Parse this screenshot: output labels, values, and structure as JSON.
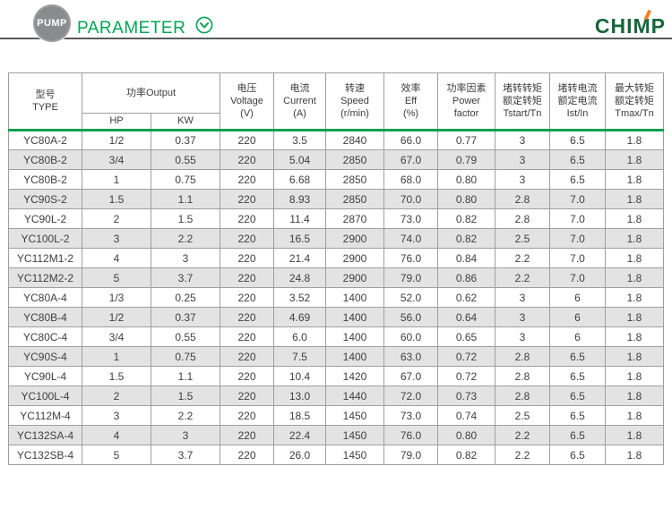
{
  "banner": {
    "badge": "PUMP",
    "title": "PARAMETER",
    "logo": {
      "part1": "CHI",
      "part2": "M",
      "part3": "P"
    }
  },
  "colors": {
    "accent_green": "#00a551",
    "separator_green": "#00a14b",
    "logo_green": "#17663a",
    "logo_orange": "#f58220",
    "row_stripe_gray": "#e3e3e3",
    "table_border_gray": "#9f9f9f",
    "banner_rule_gray": "#595a5c",
    "badge_gray": "#8a8b8d"
  },
  "icons": {
    "expand": "chevron-down-circle-icon"
  },
  "table": {
    "column_keys": [
      "type",
      "hp",
      "kw",
      "voltage",
      "current",
      "speed",
      "eff",
      "power_factor",
      "tstart_tn",
      "ist_in",
      "tmax_tn"
    ],
    "header": {
      "type": {
        "zh": "型号",
        "en": "TYPE"
      },
      "output": {
        "label": "功率Output",
        "hp": "HP",
        "kw": "KW"
      },
      "voltage": {
        "zh": "电压",
        "en": "Voltage",
        "unit": "(V)"
      },
      "current": {
        "zh": "电流",
        "en": "Current",
        "unit": "(A)"
      },
      "speed": {
        "zh": "转速",
        "en": "Speed",
        "unit": "(r/min)"
      },
      "eff": {
        "zh": "效率",
        "en": "Eff",
        "unit": "(%)"
      },
      "power_factor": {
        "zh": "功率因素",
        "en1": "Power",
        "en2": "factor"
      },
      "tstart": {
        "zh1": "堵转转矩",
        "zh2": "额定转矩",
        "en": "Tstart/Tn"
      },
      "ist": {
        "zh1": "堵转电流",
        "zh2": "额定电流",
        "en": "Ist/In"
      },
      "tmax": {
        "zh1": "最大转矩",
        "zh2": "额定转矩",
        "en": "Tmax/Tn"
      }
    },
    "rows": [
      [
        "YC80A-2",
        "1/2",
        "0.37",
        "220",
        "3.5",
        "2840",
        "66.0",
        "0.77",
        "3",
        "6.5",
        "1.8"
      ],
      [
        "YC80B-2",
        "3/4",
        "0.55",
        "220",
        "5.04",
        "2850",
        "67.0",
        "0.79",
        "3",
        "6.5",
        "1.8"
      ],
      [
        "YC80B-2",
        "1",
        "0.75",
        "220",
        "6.68",
        "2850",
        "68.0",
        "0.80",
        "3",
        "6.5",
        "1.8"
      ],
      [
        "YC90S-2",
        "1.5",
        "1.1",
        "220",
        "8.93",
        "2850",
        "70.0",
        "0.80",
        "2.8",
        "7.0",
        "1.8"
      ],
      [
        "YC90L-2",
        "2",
        "1.5",
        "220",
        "11.4",
        "2870",
        "73.0",
        "0.82",
        "2.8",
        "7.0",
        "1.8"
      ],
      [
        "YC100L-2",
        "3",
        "2.2",
        "220",
        "16.5",
        "2900",
        "74.0",
        "0.82",
        "2.5",
        "7.0",
        "1.8"
      ],
      [
        "YC112M1-2",
        "4",
        "3",
        "220",
        "21.4",
        "2900",
        "76.0",
        "0.84",
        "2.2",
        "7.0",
        "1.8"
      ],
      [
        "YC112M2-2",
        "5",
        "3.7",
        "220",
        "24.8",
        "2900",
        "79.0",
        "0.86",
        "2.2",
        "7.0",
        "1.8"
      ],
      [
        "YC80A-4",
        "1/3",
        "0.25",
        "220",
        "3.52",
        "1400",
        "52.0",
        "0.62",
        "3",
        "6",
        "1.8"
      ],
      [
        "YC80B-4",
        "1/2",
        "0.37",
        "220",
        "4.69",
        "1400",
        "56.0",
        "0.64",
        "3",
        "6",
        "1.8"
      ],
      [
        "YC80C-4",
        "3/4",
        "0.55",
        "220",
        "6.0",
        "1400",
        "60.0",
        "0.65",
        "3",
        "6",
        "1.8"
      ],
      [
        "YC90S-4",
        "1",
        "0.75",
        "220",
        "7.5",
        "1400",
        "63.0",
        "0.72",
        "2.8",
        "6.5",
        "1.8"
      ],
      [
        "YC90L-4",
        "1.5",
        "1.1",
        "220",
        "10.4",
        "1420",
        "67.0",
        "0.72",
        "2.8",
        "6.5",
        "1.8"
      ],
      [
        "YC100L-4",
        "2",
        "1.5",
        "220",
        "13.0",
        "1440",
        "72.0",
        "0.73",
        "2.8",
        "6.5",
        "1.8"
      ],
      [
        "YC112M-4",
        "3",
        "2.2",
        "220",
        "18.5",
        "1450",
        "73.0",
        "0.74",
        "2.5",
        "6.5",
        "1.8"
      ],
      [
        "YC132SA-4",
        "4",
        "3",
        "220",
        "22.4",
        "1450",
        "76.0",
        "0.80",
        "2.2",
        "6.5",
        "1.8"
      ],
      [
        "YC132SB-4",
        "5",
        "3.7",
        "220",
        "26.0",
        "1450",
        "79.0",
        "0.82",
        "2.2",
        "6.5",
        "1.8"
      ]
    ]
  }
}
